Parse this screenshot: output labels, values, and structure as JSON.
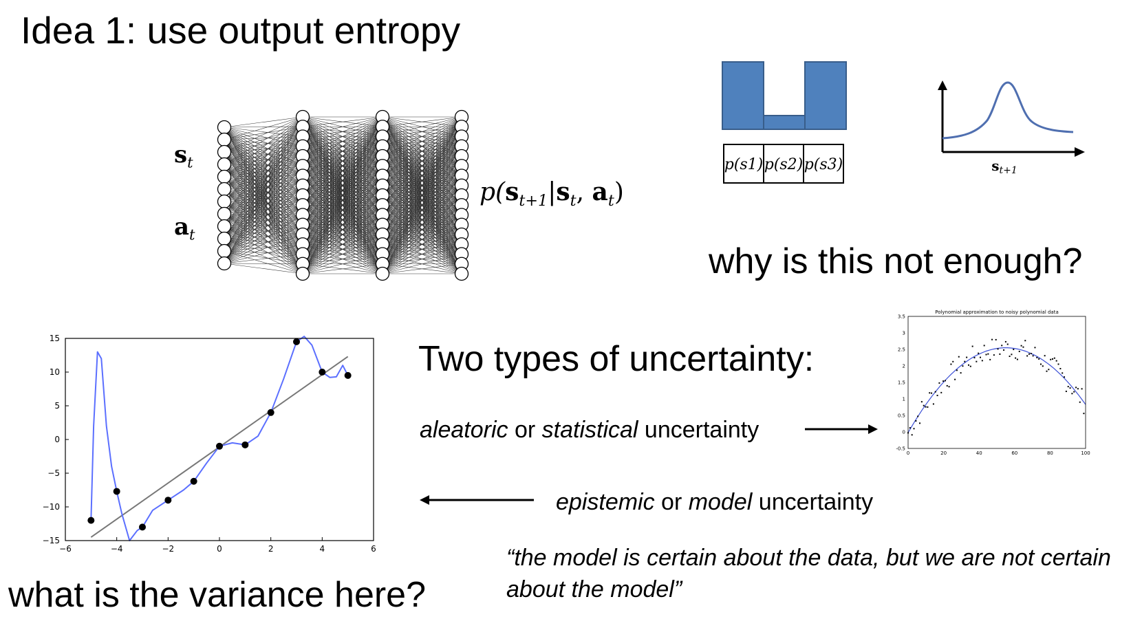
{
  "title": "Idea 1: use output entropy",
  "question_why": "why is this not enough?",
  "heading_types": "Two types of uncertainty:",
  "question_variance": "what is the variance here?",
  "aleatoric": {
    "term1": "aleatoric",
    "or": " or ",
    "term2": "statistical",
    "rest": " uncertainty"
  },
  "epistemic": {
    "term1": "epistemic",
    "or": " or ",
    "term2": "model",
    "rest": " uncertainty"
  },
  "quote": "“the model is certain about the data, but we are not certain about the model”",
  "network": {
    "input_state": "s",
    "input_state_sub": "t",
    "input_action": "a",
    "input_action_sub": "t",
    "output_p": "p(",
    "output_s": "s",
    "output_s_sub": "t+1",
    "output_given": "|",
    "output_s2": "s",
    "output_s2_sub": "t",
    "output_comma": ", ",
    "output_a": "a",
    "output_a_sub": "t",
    "output_close": ")",
    "layers": [
      12,
      17,
      17,
      17
    ]
  },
  "discrete_dist": {
    "labels": [
      "p(s1)",
      "p(s2)",
      "p(s3)"
    ],
    "values": [
      1.0,
      0.2,
      1.0
    ],
    "color": "#4f81bd"
  },
  "continuous_dist": {
    "xlabel": "s",
    "xlabel_sub": "t+1",
    "color": "#4f6fb0"
  },
  "chart_data": [
    {
      "type": "line",
      "title": "",
      "xlim": [
        -6,
        6
      ],
      "ylim": [
        -15,
        15
      ],
      "xticks": [
        "−6",
        "−4",
        "−2",
        "0",
        "2",
        "4",
        "6"
      ],
      "yticks": [
        "15",
        "10",
        "5",
        "0",
        "−5",
        "−10",
        "−15"
      ],
      "points": {
        "x": [
          -5,
          -4,
          -3,
          -2,
          -1,
          0,
          1,
          2,
          3,
          4,
          5
        ],
        "y": [
          -12,
          -7.7,
          -13,
          -9,
          -6.2,
          -1,
          -0.8,
          4,
          14.5,
          10,
          9.5
        ]
      },
      "fit_line": {
        "x": [
          -5,
          5
        ],
        "y": [
          -14.5,
          12.3
        ],
        "color": "#777777"
      },
      "interp_color": "#5b6fff"
    },
    {
      "type": "scatter",
      "title": "Polynomial approximation to noisy polynomial data",
      "xlim": [
        0,
        100
      ],
      "ylim": [
        -0.5,
        3.5
      ],
      "xticks": [
        "0",
        "20",
        "40",
        "60",
        "80",
        "100"
      ],
      "yticks": [
        "3.5",
        "3",
        "2.5",
        "2",
        "1.5",
        "1",
        "0.5",
        "0",
        "-0.5"
      ],
      "fit_color": "#3b4fd6"
    }
  ]
}
